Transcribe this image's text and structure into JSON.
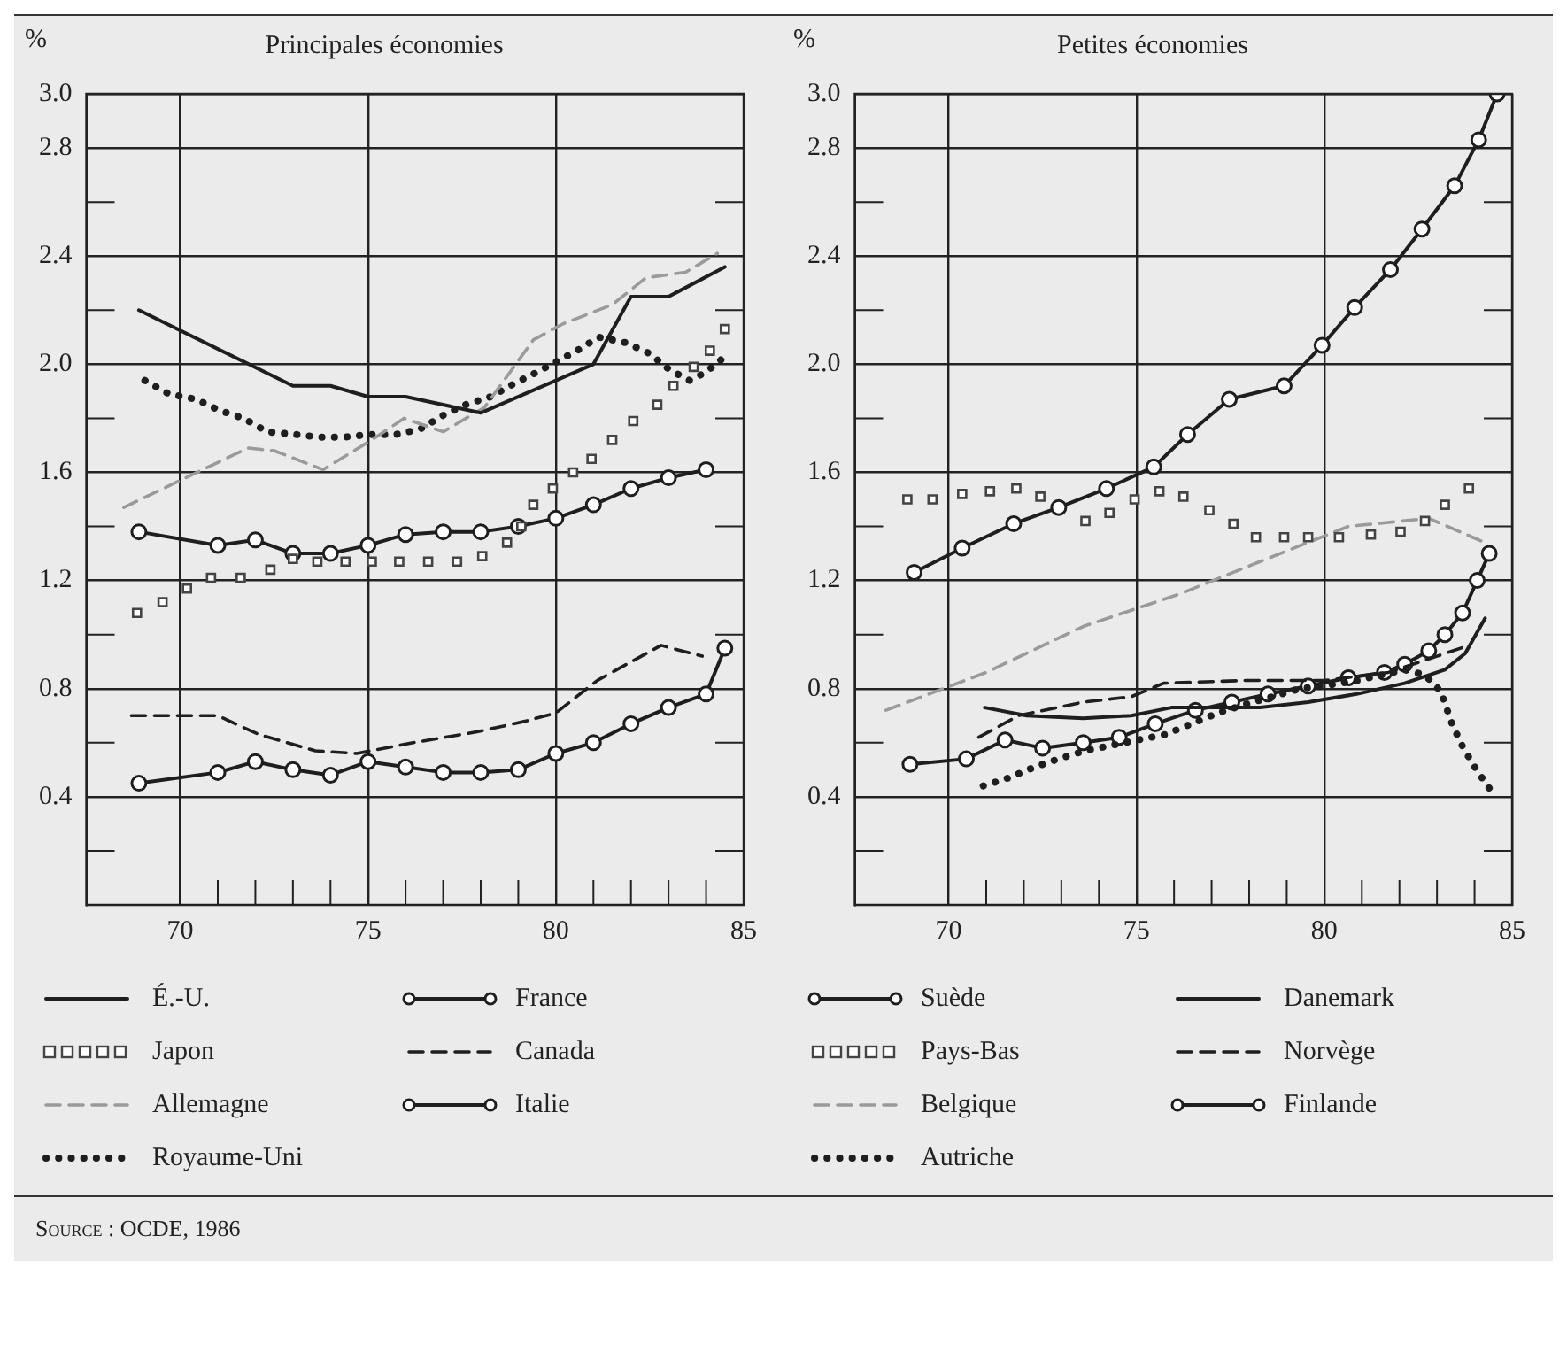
{
  "chart_data": [
    {
      "type": "line",
      "title": "Principales économies",
      "ylabel": "%",
      "xlim": [
        67.5,
        85
      ],
      "ylim": [
        0,
        3.0
      ],
      "xticks": [
        70,
        {
          "value": 71,
          "label": null
        },
        {
          "value": 72,
          "label": null
        },
        {
          "value": 73,
          "label": null
        },
        {
          "value": 74,
          "label": null
        },
        75,
        {
          "value": 76,
          "label": null
        },
        {
          "value": 77,
          "label": null
        },
        {
          "value": 78,
          "label": null
        },
        {
          "value": 79,
          "label": null
        },
        80,
        {
          "value": 81,
          "label": null
        },
        {
          "value": 82,
          "label": null
        },
        {
          "value": 83,
          "label": null
        },
        {
          "value": 84,
          "label": null
        },
        85
      ],
      "yticks": [
        {
          "value": 0.2,
          "label": null
        },
        0.4,
        {
          "value": 0.6,
          "label": null
        },
        0.8,
        {
          "value": 1.0,
          "label": null
        },
        1.2,
        {
          "value": 1.4,
          "label": null
        },
        1.6,
        {
          "value": 1.8,
          "label": null
        },
        {
          "value": 2.0,
          "label": "2.0"
        },
        {
          "value": 2.2,
          "label": null
        },
        2.4,
        {
          "value": 2.6,
          "label": null
        },
        2.8,
        {
          "value": 3.0,
          "label": "3.0"
        }
      ],
      "grid": true,
      "legend": "bottom",
      "annotations": [
        "Source : OCDE, 1986"
      ],
      "series": [
        {
          "name": "É.-U.",
          "color": "#1e1e1e",
          "type": "line",
          "line_style": "solid",
          "marker": "none",
          "x": [
            68.9,
            73,
            74,
            75,
            76,
            78,
            81,
            82,
            83,
            84.5
          ],
          "values": [
            2.2,
            1.92,
            1.92,
            1.88,
            1.88,
            1.82,
            2.0,
            2.25,
            2.25,
            2.36
          ]
        },
        {
          "name": "Japon",
          "color": "#444444",
          "type": "scatter",
          "marker": "square",
          "x": [
            68.85,
            69.53,
            70.18,
            70.82,
            71.61,
            72.4,
            73.0,
            73.65,
            74.4,
            75.1,
            75.83,
            76.6,
            77.37,
            78.04,
            78.7,
            79.08,
            79.4,
            79.92,
            80.46,
            80.95,
            81.5,
            82.06,
            82.7,
            83.13,
            83.67,
            84.1,
            84.5
          ],
          "values": [
            1.08,
            1.12,
            1.17,
            1.21,
            1.21,
            1.24,
            1.28,
            1.27,
            1.27,
            1.27,
            1.27,
            1.27,
            1.27,
            1.29,
            1.34,
            1.4,
            1.48,
            1.54,
            1.6,
            1.65,
            1.72,
            1.79,
            1.85,
            1.92,
            1.99,
            2.05,
            2.13
          ]
        },
        {
          "name": "Allemagne",
          "color": "#9a9a9a",
          "type": "line",
          "line_style": "dashed",
          "marker": "none",
          "x": [
            68.5,
            71.8,
            72.5,
            73.8,
            75.1,
            75.96,
            77.0,
            78.1,
            79.4,
            80.2,
            81.5,
            82.4,
            83.45,
            84.3
          ],
          "values": [
            1.47,
            1.69,
            1.68,
            1.61,
            1.72,
            1.8,
            1.75,
            1.84,
            2.09,
            2.15,
            2.22,
            2.32,
            2.34,
            2.41
          ]
        },
        {
          "name": "Royaume-Uni",
          "color": "#1e1e1e",
          "type": "line",
          "line_style": "dotted",
          "marker": "none",
          "x": [
            69.06,
            69.7,
            70.43,
            71.03,
            71.68,
            72.32,
            73.07,
            73.71,
            74.35,
            75.04,
            75.74,
            76.39,
            76.99,
            77.59,
            78.27,
            78.91,
            79.49,
            80.03,
            80.56,
            81.14,
            81.85,
            82.49,
            83.02,
            83.56,
            83.99,
            84.52
          ],
          "values": [
            1.94,
            1.89,
            1.87,
            1.83,
            1.8,
            1.75,
            1.74,
            1.73,
            1.73,
            1.74,
            1.74,
            1.76,
            1.81,
            1.85,
            1.88,
            1.93,
            1.97,
            2.01,
            2.05,
            2.1,
            2.08,
            2.04,
            1.98,
            1.94,
            1.97,
            2.03
          ]
        },
        {
          "name": "France",
          "color": "#1e1e1e",
          "type": "line",
          "line_style": "solid",
          "marker": "circle",
          "x": [
            68.9,
            71,
            72,
            73,
            74,
            75,
            76,
            77,
            78,
            79,
            80,
            81,
            82,
            83,
            84
          ],
          "values": [
            1.38,
            1.33,
            1.35,
            1.3,
            1.3,
            1.33,
            1.37,
            1.38,
            1.38,
            1.4,
            1.43,
            1.48,
            1.54,
            1.58,
            1.61
          ]
        },
        {
          "name": "Canada",
          "color": "#1e1e1e",
          "type": "line",
          "line_style": "dashed",
          "marker": "none",
          "x": [
            68.7,
            71,
            72.1,
            73.6,
            74.7,
            76.2,
            77.9,
            79.2,
            80,
            81.1,
            82.8,
            83.9
          ],
          "values": [
            0.7,
            0.7,
            0.63,
            0.57,
            0.56,
            0.6,
            0.64,
            0.68,
            0.71,
            0.83,
            0.96,
            0.92
          ]
        },
        {
          "name": "Italie",
          "color": "#1e1e1e",
          "type": "line",
          "line_style": "solid",
          "marker": "circle",
          "x": [
            68.9,
            71,
            72,
            73,
            74,
            75,
            76,
            77,
            78,
            79,
            80,
            81,
            82,
            83,
            84,
            84.5
          ],
          "values": [
            0.45,
            0.49,
            0.53,
            0.5,
            0.48,
            0.53,
            0.51,
            0.49,
            0.49,
            0.5,
            0.56,
            0.6,
            0.67,
            0.73,
            0.78,
            0.95
          ]
        }
      ]
    },
    {
      "type": "line",
      "title": "Petites économies",
      "ylabel": "%",
      "xlim": [
        67.5,
        85
      ],
      "ylim": [
        0,
        3.0
      ],
      "xticks": [
        70,
        {
          "value": 71,
          "label": null
        },
        {
          "value": 72,
          "label": null
        },
        {
          "value": 73,
          "label": null
        },
        {
          "value": 74,
          "label": null
        },
        75,
        {
          "value": 76,
          "label": null
        },
        {
          "value": 77,
          "label": null
        },
        {
          "value": 78,
          "label": null
        },
        {
          "value": 79,
          "label": null
        },
        80,
        {
          "value": 81,
          "label": null
        },
        {
          "value": 82,
          "label": null
        },
        {
          "value": 83,
          "label": null
        },
        {
          "value": 84,
          "label": null
        },
        85
      ],
      "yticks": [
        {
          "value": 0.2,
          "label": null
        },
        0.4,
        {
          "value": 0.6,
          "label": null
        },
        0.8,
        {
          "value": 1.0,
          "label": null
        },
        1.2,
        {
          "value": 1.4,
          "label": null
        },
        1.6,
        {
          "value": 1.8,
          "label": null
        },
        {
          "value": 2.0,
          "label": "2.0"
        },
        {
          "value": 2.2,
          "label": null
        },
        2.4,
        {
          "value": 2.6,
          "label": null
        },
        2.8,
        {
          "value": 3.0,
          "label": "3.0"
        }
      ],
      "grid": true,
      "legend": "bottom",
      "series": [
        {
          "name": "Suède",
          "color": "#1e1e1e",
          "type": "line",
          "line_style": "solid",
          "marker": "circle",
          "x": [
            69.08,
            70.36,
            71.73,
            72.93,
            74.2,
            75.46,
            76.36,
            77.47,
            78.93,
            79.94,
            80.81,
            81.76,
            82.6,
            83.47,
            84.11,
            84.6
          ],
          "values": [
            1.23,
            1.32,
            1.41,
            1.47,
            1.54,
            1.62,
            1.74,
            1.87,
            1.92,
            2.07,
            2.21,
            2.35,
            2.5,
            2.66,
            2.83,
            3.0
          ]
        },
        {
          "name": "Pays-Bas",
          "color": "#444444",
          "type": "scatter",
          "marker": "square",
          "x": [
            68.9,
            69.57,
            70.36,
            71.1,
            71.8,
            72.44,
            73.02,
            73.64,
            74.28,
            74.95,
            75.61,
            76.25,
            76.94,
            77.58,
            78.18,
            78.93,
            79.57,
            80.39,
            81.24,
            82.03,
            82.68,
            83.21,
            83.85
          ],
          "values": [
            1.5,
            1.5,
            1.52,
            1.53,
            1.54,
            1.51,
            null,
            1.42,
            1.45,
            1.5,
            1.53,
            1.51,
            1.46,
            1.41,
            1.36,
            1.36,
            1.36,
            1.36,
            1.37,
            1.38,
            1.42,
            1.48,
            1.54
          ]
        },
        {
          "name": "Belgique",
          "color": "#9a9a9a",
          "type": "line",
          "line_style": "dashed",
          "marker": "none",
          "x": [
            68.33,
            71,
            73.58,
            76.15,
            78.29,
            80.64,
            82.78,
            84.28
          ],
          "values": [
            0.72,
            0.86,
            1.03,
            1.15,
            1.27,
            1.4,
            1.43,
            1.34
          ]
        },
        {
          "name": "Autriche",
          "color": "#1e1e1e",
          "type": "line",
          "line_style": "dotted",
          "marker": "none",
          "x": [
            70.92,
            71.6,
            72.29,
            72.93,
            73.62,
            74.33,
            75.03,
            75.76,
            76.47,
            77.17,
            77.86,
            78.61,
            79.36,
            80,
            80.86,
            81.5,
            82.14,
            82.68,
            83.1,
            83.4,
            83.7,
            84.05,
            84.4
          ],
          "values": [
            0.44,
            0.47,
            0.51,
            0.54,
            0.57,
            0.59,
            0.61,
            0.63,
            0.67,
            0.71,
            0.74,
            0.77,
            0.8,
            0.81,
            0.83,
            0.85,
            0.87,
            0.85,
            0.79,
            0.67,
            0.58,
            0.5,
            0.43
          ]
        },
        {
          "name": "Danemark",
          "color": "#1e1e1e",
          "type": "line",
          "line_style": "solid",
          "marker": "none",
          "x": [
            70.96,
            72.08,
            73.58,
            74.86,
            75.93,
            77,
            78.29,
            79.57,
            80.86,
            82.14,
            83.21,
            83.75,
            84.28
          ],
          "values": [
            0.73,
            0.7,
            0.69,
            0.7,
            0.73,
            0.73,
            0.73,
            0.75,
            0.78,
            0.82,
            0.87,
            0.93,
            1.06
          ]
        },
        {
          "name": "Norvège",
          "color": "#1e1e1e",
          "type": "line",
          "line_style": "dashed",
          "marker": "none",
          "x": [
            70.8,
            71.86,
            73.58,
            74.86,
            75.72,
            77.86,
            80,
            81.71,
            83,
            83.85
          ],
          "values": [
            0.62,
            0.7,
            0.75,
            0.77,
            0.82,
            0.83,
            0.83,
            0.86,
            0.92,
            0.96
          ]
        },
        {
          "name": "Finlande",
          "color": "#1e1e1e",
          "type": "line",
          "line_style": "solid",
          "marker": "circle",
          "x": [
            68.97,
            70.47,
            71.5,
            72.5,
            73.58,
            74.54,
            75.5,
            76.57,
            77.54,
            78.5,
            79.57,
            80.64,
            81.6,
            82.14,
            82.78,
            83.21,
            83.68,
            84.07,
            84.39
          ],
          "values": [
            0.52,
            0.54,
            0.61,
            0.58,
            0.6,
            0.62,
            0.67,
            0.72,
            0.75,
            0.78,
            0.81,
            0.84,
            0.86,
            0.89,
            0.94,
            1.0,
            1.08,
            1.2,
            1.3
          ]
        }
      ]
    }
  ]
}
